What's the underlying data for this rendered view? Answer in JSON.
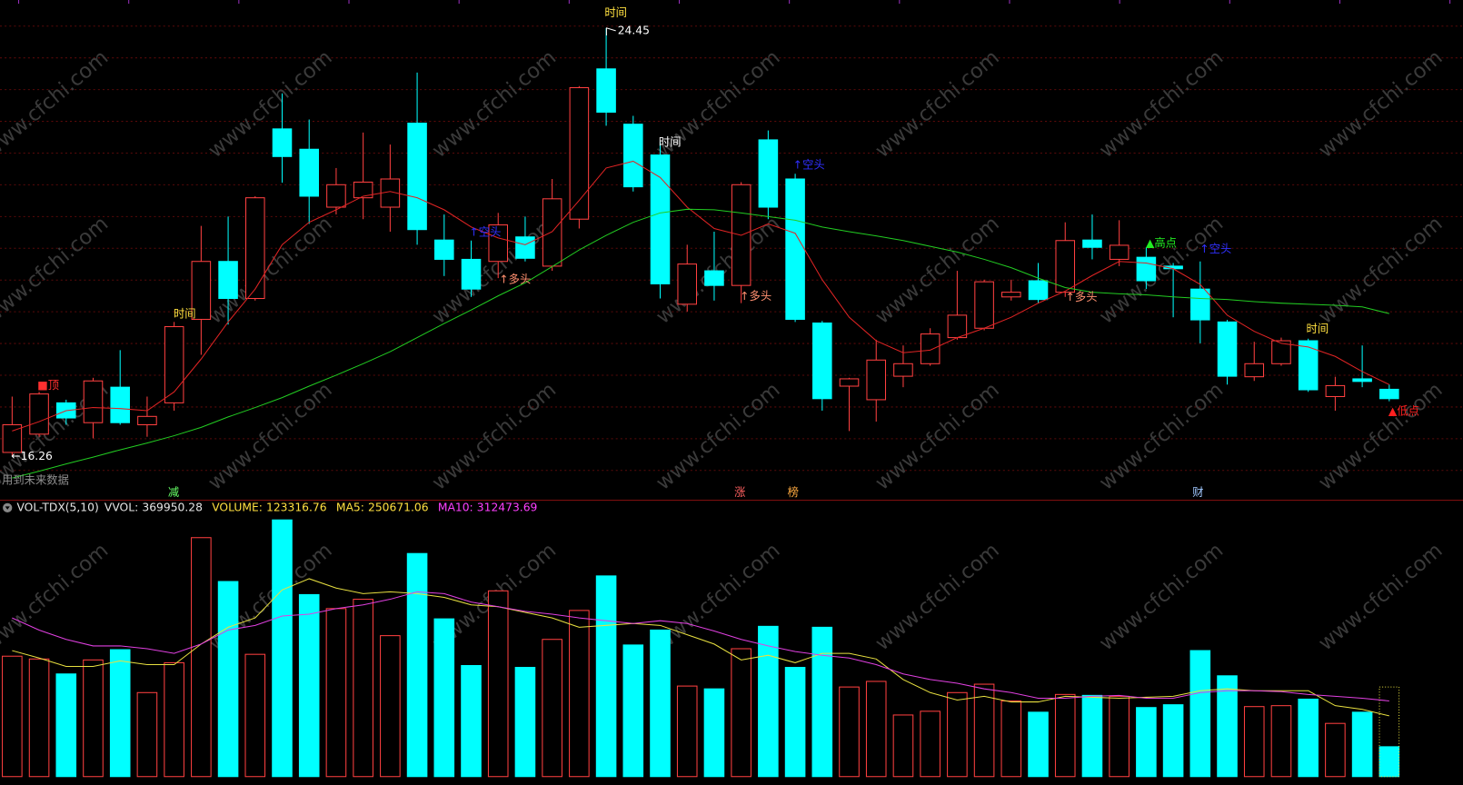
{
  "chart_data": [
    {
      "type": "candlestick",
      "ohlc": {
        "open": [
          16.32,
          16.67,
          17.27,
          16.89,
          17.57,
          16.85,
          17.27,
          18.87,
          19.98,
          19.27,
          22.52,
          22.13,
          21.02,
          21.2,
          21.02,
          22.63,
          20.39,
          20.02,
          19.98,
          20.45,
          19.89,
          20.79,
          23.67,
          22.61,
          22.02,
          19.16,
          19.8,
          19.52,
          22.31,
          21.56,
          18.8,
          17.59,
          17.33,
          17.78,
          18.02,
          18.52,
          18.7,
          19.3,
          19.61,
          19.39,
          20.39,
          20.02,
          20.06,
          19.89,
          19.45,
          18.82,
          17.77,
          18.02,
          18.46,
          17.39,
          17.73,
          17.53
        ],
        "high": [
          17.39,
          17.48,
          17.33,
          17.75,
          18.28,
          17.39,
          18.82,
          20.66,
          20.84,
          21.23,
          23.2,
          22.7,
          21.77,
          22.45,
          22.22,
          23.6,
          20.88,
          20.38,
          20.91,
          20.84,
          21.56,
          23.34,
          24.45,
          22.77,
          22.27,
          20.3,
          20.55,
          21.5,
          22.49,
          21.66,
          18.84,
          17.75,
          18.48,
          18.37,
          18.7,
          19.8,
          19.63,
          19.63,
          19.95,
          20.73,
          20.88,
          20.77,
          20.25,
          19.95,
          19.98,
          18.86,
          18.44,
          18.52,
          18.5,
          17.77,
          18.37,
          17.62
        ],
        "low": [
          16.26,
          16.62,
          16.85,
          16.59,
          16.85,
          16.62,
          17.12,
          18.19,
          18.77,
          19.23,
          21.49,
          20.7,
          20.88,
          20.79,
          20.55,
          20.3,
          19.7,
          19.3,
          19.66,
          19.98,
          19.8,
          20.61,
          22.58,
          21.32,
          19.27,
          19.02,
          19.23,
          19.18,
          20.79,
          18.82,
          17.12,
          16.73,
          16.91,
          17.57,
          17.98,
          18.48,
          18.66,
          19.23,
          19.18,
          19.3,
          20.02,
          19.89,
          19.45,
          18.91,
          18.41,
          17.62,
          17.69,
          17.98,
          17.48,
          17.12,
          17.57,
          17.3
        ],
        "close": [
          16.85,
          17.44,
          16.98,
          17.69,
          16.89,
          17.01,
          18.73,
          19.98,
          19.27,
          21.2,
          21.99,
          21.23,
          21.45,
          21.5,
          21.56,
          20.59,
          20.02,
          19.45,
          20.68,
          20.04,
          21.18,
          23.31,
          22.84,
          21.41,
          19.55,
          19.93,
          19.52,
          21.45,
          21.02,
          18.87,
          17.35,
          17.73,
          18.09,
          18.02,
          18.59,
          18.95,
          19.59,
          19.39,
          19.25,
          20.38,
          20.25,
          20.29,
          19.61,
          19.84,
          18.86,
          17.78,
          18.02,
          18.46,
          17.52,
          17.6,
          17.68,
          17.35
        ]
      },
      "up_color": "#ff4040",
      "down_color": "#00ffff",
      "lines": [
        {
          "color": "#e02424",
          "values": [
            16.73,
            16.91,
            17.12,
            17.18,
            17.16,
            17.12,
            17.48,
            18.11,
            18.82,
            19.45,
            20.3,
            20.73,
            20.97,
            21.23,
            21.32,
            21.2,
            20.97,
            20.64,
            20.43,
            20.3,
            20.55,
            21.15,
            21.77,
            21.9,
            21.59,
            21.02,
            20.61,
            20.48,
            20.7,
            20.52,
            19.63,
            18.91,
            18.46,
            18.23,
            18.28,
            18.52,
            18.7,
            18.91,
            19.18,
            19.41,
            19.71,
            19.98,
            19.95,
            19.84,
            19.54,
            18.95,
            18.64,
            18.41,
            18.34,
            18.16,
            17.87,
            17.62
          ]
        },
        {
          "color": "#22cc22",
          "values": [
            15.83,
            15.96,
            16.1,
            16.23,
            16.37,
            16.5,
            16.64,
            16.8,
            17.0,
            17.18,
            17.37,
            17.59,
            17.8,
            18.02,
            18.25,
            18.52,
            18.79,
            19.05,
            19.32,
            19.57,
            19.88,
            20.2,
            20.48,
            20.73,
            20.91,
            20.98,
            20.97,
            20.91,
            20.84,
            20.77,
            20.64,
            20.55,
            20.47,
            20.38,
            20.27,
            20.16,
            20.02,
            19.86,
            19.66,
            19.48,
            19.39,
            19.36,
            19.34,
            19.3,
            19.27,
            19.25,
            19.21,
            19.18,
            19.16,
            19.14,
            19.11,
            18.98
          ]
        }
      ],
      "ylim": [
        15.42,
        24.99
      ],
      "annotations": [
        {
          "text": "时间",
          "color": "#ffe040"
        },
        {
          "text": "24.45",
          "color": "#ffffff"
        },
        {
          "text": "←16.26",
          "color": "#ffffff"
        },
        {
          "text": "■顶",
          "color": "#ff3030"
        },
        {
          "text": "时间",
          "color": "#ffe040"
        },
        {
          "text": "↑空头",
          "color": "#3030ff"
        },
        {
          "text": "↑多头",
          "color": "#ff9070"
        },
        {
          "text": "时间",
          "color": "#ffffff"
        },
        {
          "text": "↑空头",
          "color": "#3030ff"
        },
        {
          "text": "↑多头",
          "color": "#ff9070"
        },
        {
          "text": "↑多头",
          "color": "#ff9070"
        },
        {
          "text": "▲高点",
          "color": "#22ee22"
        },
        {
          "text": "↑空头",
          "color": "#3030ff"
        },
        {
          "text": "时间",
          "color": "#ffe040"
        },
        {
          "text": "▲低点",
          "color": "#ff2020"
        }
      ],
      "markers": [
        {
          "text": "减",
          "color": "#66ff66"
        },
        {
          "text": "涨",
          "color": "#ff6060"
        },
        {
          "text": "榜",
          "color": "#ffaa40"
        },
        {
          "text": "财",
          "color": "#a0c8ff"
        }
      ],
      "note": "用到未来数据",
      "watermark": "www.cfchi.com"
    },
    {
      "type": "bar",
      "title": "VOL-TDX(5,10)",
      "indicators": [
        {
          "label": "VVOL:",
          "value": 369950.28,
          "color": "#e6e6e6"
        },
        {
          "label": "VOLUME:",
          "value": 123316.76,
          "color": "#ffe040"
        },
        {
          "label": "MA5:",
          "value": 250671.06,
          "color": "#ffe040"
        },
        {
          "label": "MA10:",
          "value": 312473.69,
          "color": "#ff40ff"
        }
      ],
      "values": [
        497166,
        485604,
        423940,
        481750,
        524144,
        346860,
        470188,
        986624,
        805486,
        504874,
        1059850,
        751530,
        693720,
        732260,
        581954,
        921106,
        651326,
        458626,
        766946,
        450918,
        566538,
        686012,
        828610,
        543414,
        605078,
        373838,
        362276,
        527998,
        620494,
        450918,
        616640,
        369984,
        393108,
        254364,
        269780,
        346860,
        381546,
        312174,
        265926,
        339152,
        335298,
        331444,
        285196,
        296758,
        520290,
        416232,
        289050,
        292904,
        319882,
        219678,
        265926,
        123316.76
      ],
      "lines": [
        {
          "color": "#e8e040",
          "values": [
            520290,
            489458,
            454772,
            454772,
            477896,
            462480,
            462480,
            547268,
            616640,
            655180,
            770800,
            817048,
            778508,
            755384,
            763092,
            755384,
            739968,
            709136,
            701428,
            678304,
            655180,
            616640,
            624348,
            632056,
            624348,
            585808,
            547268,
            481750,
            501020,
            470188,
            508728,
            508728,
            485604,
            400816,
            346860,
            316028,
            331444,
            308320,
            308320,
            331444,
            327590,
            323736,
            327590,
            331444,
            354568,
            362276,
            354568,
            354568,
            354568,
            292904,
            277488,
            250671.06
          ]
        },
        {
          "color": "#e040e0",
          "values": [
            655180,
            605078,
            566538,
            539560,
            539560,
            527998,
            508728,
            547268,
            605078,
            624348,
            662888,
            670596,
            693720,
            709136,
            732260,
            763092,
            755384,
            720698,
            701428,
            682158,
            670596,
            655180,
            643618,
            632056,
            643618,
            632056,
            601224,
            566538,
            539560,
            516436,
            501020,
            489458,
            462480,
            423940,
            400816,
            385400,
            362276,
            346860,
            323736,
            323736,
            331444,
            335298,
            323736,
            323736,
            346860,
            354568,
            354568,
            350714,
            339152,
            331444,
            323736,
            312473.69
          ]
        }
      ],
      "ylim": [
        0,
        1106098
      ]
    }
  ]
}
